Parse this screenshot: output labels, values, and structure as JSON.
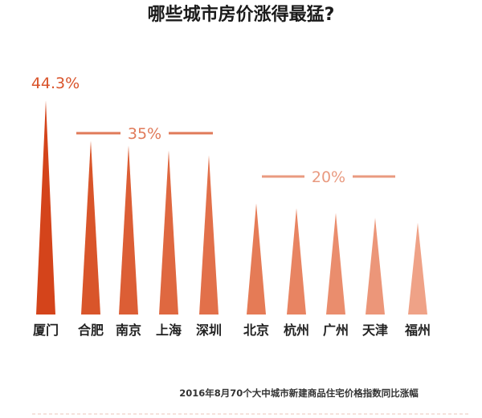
{
  "chart_data": {
    "type": "bar",
    "title": "哪些城市房价涨得最猛?",
    "note": "2016年8月70个大中城市新建商品住宅价格指数同比涨幅",
    "categories": [
      "厦门",
      "合肥",
      "南京",
      "上海",
      "深圳",
      "北京",
      "杭州",
      "广州",
      "天津",
      "福州"
    ],
    "values": [
      44.3,
      36,
      35,
      34,
      33,
      23,
      22,
      21,
      20,
      19
    ],
    "ylim": [
      0,
      45
    ],
    "annotations": [
      {
        "label": "44.3%",
        "applies_to": [
          "厦门"
        ],
        "color": "#d9542b"
      },
      {
        "label": "35%",
        "applies_to": [
          "合肥",
          "南京",
          "上海",
          "深圳"
        ],
        "color": "#e07a59"
      },
      {
        "label": "20%",
        "applies_to": [
          "北京",
          "杭州",
          "广州",
          "天津",
          "福州"
        ],
        "color": "#e99a80"
      }
    ],
    "colors": [
      "#d4441b",
      "#d9552a",
      "#dc5e35",
      "#df6840",
      "#e2704a",
      "#e57b56",
      "#e88462",
      "#ea8d6d",
      "#ec9679",
      "#efa287"
    ],
    "grid": false,
    "legend": "none"
  }
}
